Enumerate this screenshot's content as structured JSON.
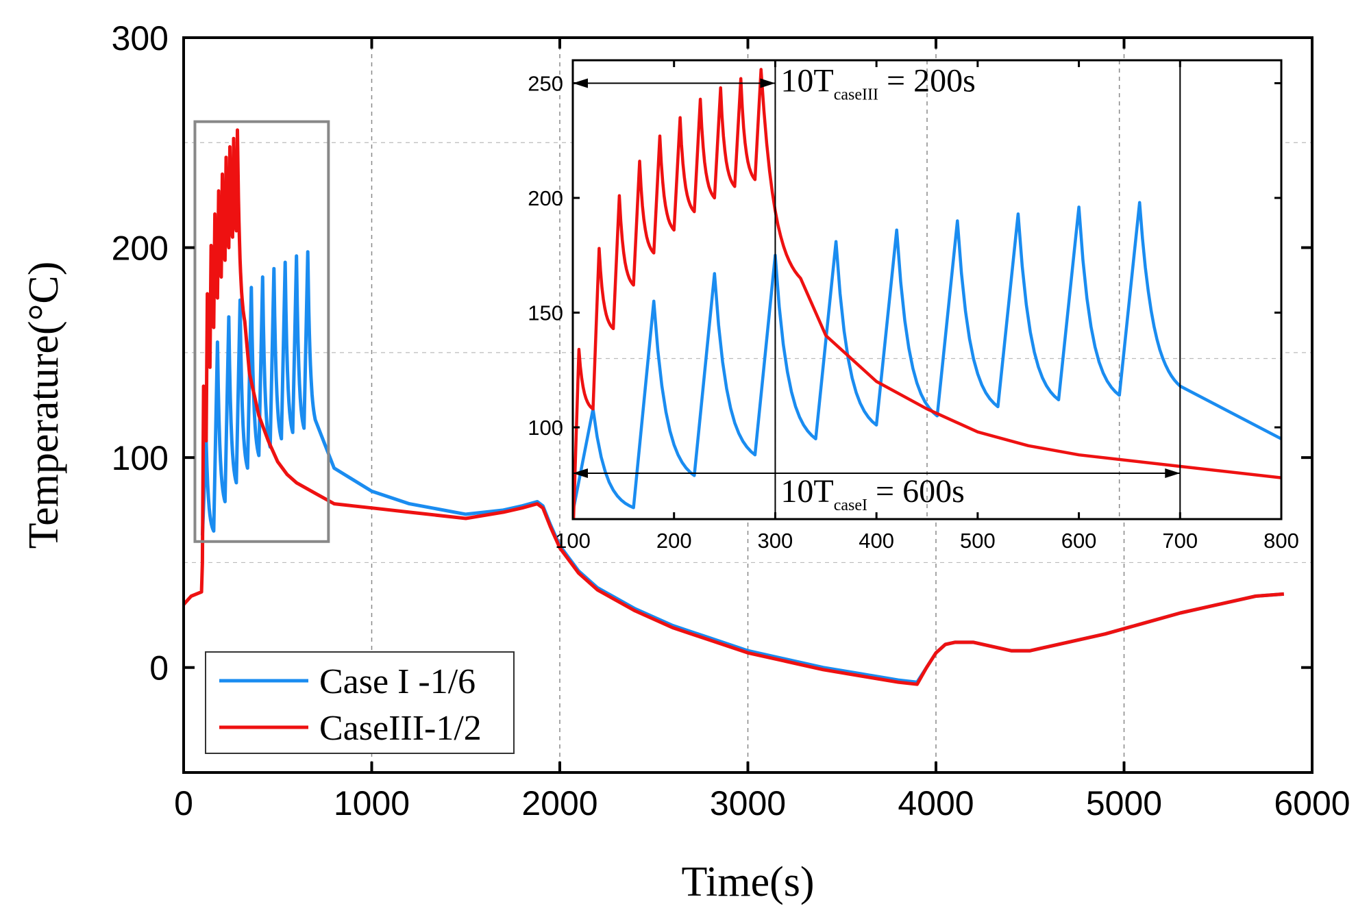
{
  "chart_data": [
    {
      "type": "line",
      "role": "main",
      "xlabel": "Time(s)",
      "ylabel": "Temperature(°C)",
      "xlim": [
        0,
        6000
      ],
      "ylim": [
        -50,
        300
      ],
      "xticks": [
        0,
        1000,
        2000,
        3000,
        4000,
        5000,
        6000
      ],
      "yticks": [
        0,
        100,
        200,
        300
      ],
      "xtick_labels": [
        "0",
        "1000",
        "2000",
        "3000",
        "4000",
        "5000",
        "6000"
      ],
      "ytick_labels": [
        "0",
        "100",
        "200",
        "300"
      ],
      "grid_x": [
        1000,
        2000,
        3000,
        4000,
        5000
      ],
      "grid_y": [
        50,
        150,
        250
      ],
      "zoom_box": {
        "x": [
          60,
          770
        ],
        "y": [
          60,
          260
        ]
      },
      "legend": {
        "placement": "bottom-left",
        "entries": [
          "Case I -1/6",
          "CaseIII-1/2"
        ]
      },
      "series": [
        {
          "name": "Case I -1/6",
          "color": "#1a8cf0",
          "pulses": {
            "start": 100,
            "period": 60,
            "count": 10,
            "heat_rise": 20,
            "peaks": [
              108,
              155,
              167,
              175,
              181,
              186,
              190,
              193,
              196,
              198
            ],
            "troughs": [
              65,
              79,
              88,
              95,
              101,
              105,
              109,
              112,
              114
            ]
          },
          "tail": [
            [
              700,
              118
            ],
            [
              800,
              95
            ],
            [
              1000,
              84
            ],
            [
              1200,
              78
            ],
            [
              1500,
              73
            ],
            [
              1700,
              75
            ],
            [
              1800,
              77
            ],
            [
              1880,
              79
            ],
            [
              1910,
              77
            ],
            [
              1950,
              68
            ],
            [
              2000,
              58
            ],
            [
              2100,
              46
            ],
            [
              2200,
              38
            ],
            [
              2400,
              28
            ],
            [
              2600,
              20
            ],
            [
              2800,
              14
            ],
            [
              3000,
              8
            ],
            [
              3200,
              4
            ],
            [
              3400,
              0
            ],
            [
              3600,
              -3
            ],
            [
              3800,
              -6
            ],
            [
              3900,
              -7
            ],
            [
              3950,
              0
            ],
            [
              4000,
              7
            ],
            [
              4050,
              11
            ],
            [
              4100,
              12
            ],
            [
              4200,
              12
            ],
            [
              4300,
              10
            ],
            [
              4400,
              8
            ],
            [
              4500,
              8
            ],
            [
              4700,
              12
            ],
            [
              4900,
              16
            ],
            [
              5100,
              21
            ],
            [
              5300,
              26
            ],
            [
              5500,
              30
            ],
            [
              5700,
              34
            ],
            [
              5850,
              35
            ]
          ]
        },
        {
          "name": "CaseIII-1/2",
          "color": "#ee1111",
          "pre": [
            [
              0,
              30
            ],
            [
              40,
              34
            ],
            [
              95,
              36
            ],
            [
              100,
              50
            ]
          ],
          "pulses": {
            "start": 100,
            "period": 20,
            "count": 10,
            "heat_rise": 6,
            "peaks": [
              134,
              178,
              201,
              216,
              227,
              235,
              243,
              248,
              252,
              256
            ],
            "troughs": [
              108,
              143,
              162,
              176,
              186,
              194,
              200,
              205,
              208
            ]
          },
          "tail": [
            [
              325,
              165
            ],
            [
              350,
              140
            ],
            [
              400,
              120
            ],
            [
              450,
              108
            ],
            [
              500,
              98
            ],
            [
              550,
              92
            ],
            [
              600,
              88
            ],
            [
              700,
              83
            ],
            [
              800,
              78
            ],
            [
              900,
              77
            ],
            [
              1000,
              76
            ],
            [
              1200,
              74
            ],
            [
              1500,
              71
            ],
            [
              1700,
              74
            ],
            [
              1800,
              76
            ],
            [
              1880,
              78
            ],
            [
              1910,
              76
            ],
            [
              1950,
              67
            ],
            [
              2000,
              57
            ],
            [
              2100,
              45
            ],
            [
              2200,
              37
            ],
            [
              2400,
              27
            ],
            [
              2600,
              19
            ],
            [
              2800,
              13
            ],
            [
              3000,
              7
            ],
            [
              3200,
              3
            ],
            [
              3400,
              -1
            ],
            [
              3600,
              -4
            ],
            [
              3800,
              -7
            ],
            [
              3900,
              -8
            ],
            [
              3950,
              0
            ],
            [
              4000,
              7
            ],
            [
              4050,
              11
            ],
            [
              4100,
              12
            ],
            [
              4200,
              12
            ],
            [
              4300,
              10
            ],
            [
              4400,
              8
            ],
            [
              4500,
              8
            ],
            [
              4700,
              12
            ],
            [
              4900,
              16
            ],
            [
              5100,
              21
            ],
            [
              5300,
              26
            ],
            [
              5500,
              30
            ],
            [
              5700,
              34
            ],
            [
              5850,
              35
            ]
          ]
        }
      ]
    },
    {
      "type": "line",
      "role": "inset",
      "xlim": [
        100,
        800
      ],
      "ylim": [
        60,
        260
      ],
      "xticks": [
        100,
        200,
        300,
        400,
        500,
        600,
        700,
        800
      ],
      "yticks": [
        100,
        150,
        200,
        250
      ],
      "xtick_labels": [
        "100",
        "200",
        "300",
        "400",
        "500",
        "600",
        "700",
        "800"
      ],
      "ytick_labels": [
        "100",
        "150",
        "200",
        "250"
      ],
      "grid_x": [
        300,
        450,
        640
      ],
      "grid_y": [
        130
      ],
      "marker_lines_x": [
        100,
        300,
        700
      ],
      "annotations": [
        {
          "text": "10T",
          "sub": "caseIII",
          "post": " = 200s",
          "arrow_from": 100,
          "arrow_to": 300,
          "arrow_y": 250
        },
        {
          "text": "10T",
          "sub": "caseI",
          "post": " = 600s",
          "arrow_from": 100,
          "arrow_to": 700,
          "arrow_y": 80
        }
      ]
    }
  ]
}
